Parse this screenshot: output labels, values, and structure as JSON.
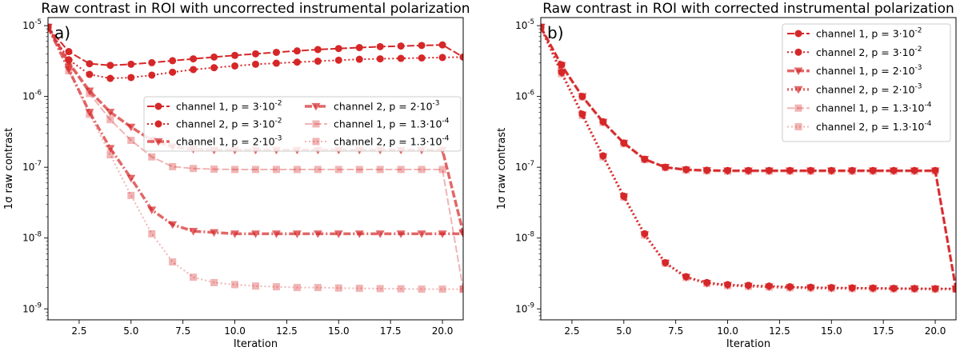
{
  "chart_data": [
    {
      "type": "line",
      "panel_label": "a)",
      "title": "Raw contrast in ROI with uncorrected instrumental polarization",
      "xlabel": "Iteration",
      "ylabel": "1σ raw contrast",
      "xlim": [
        1,
        21
      ],
      "ylim": [
        7e-10,
        1.3e-05
      ],
      "yscale": "log",
      "xticks": [
        2.5,
        5.0,
        7.5,
        10.0,
        12.5,
        15.0,
        17.5,
        20.0
      ],
      "xtick_labels": [
        "2.5",
        "5.0",
        "7.5",
        "10.0",
        "12.5",
        "15.0",
        "17.5",
        "20.0"
      ],
      "yticks": [
        1e-09,
        1e-08,
        1e-07,
        1e-06,
        1e-05
      ],
      "ytick_labels": [
        "10^-9",
        "10^-8",
        "10^-7",
        "10^-6",
        "10^-5"
      ],
      "legend_position": "center-right",
      "legend_columns": 2,
      "x": [
        1,
        2,
        3,
        4,
        5,
        6,
        7,
        8,
        9,
        10,
        11,
        12,
        13,
        14,
        15,
        16,
        17,
        18,
        19,
        20,
        21
      ],
      "series": [
        {
          "name": "channel 1, p = 3·10^-2",
          "color": "#d62728",
          "alpha": 1.0,
          "style": "dashed",
          "marker": "circle",
          "width": 2,
          "values": [
            9.5e-06,
            4.3e-06,
            2.9e-06,
            2.75e-06,
            2.85e-06,
            3e-06,
            3.2e-06,
            3.4e-06,
            3.6e-06,
            3.8e-06,
            4e-06,
            4.2e-06,
            4.4e-06,
            4.6e-06,
            4.75e-06,
            4.9e-06,
            5.05e-06,
            5.15e-06,
            5.25e-06,
            5.35e-06,
            3.6e-06
          ]
        },
        {
          "name": "channel 2, p = 3·10^-2",
          "color": "#d62728",
          "alpha": 1.0,
          "style": "dotted",
          "marker": "circle",
          "width": 2,
          "values": [
            9.5e-06,
            3.3e-06,
            2.05e-06,
            1.8e-06,
            1.85e-06,
            2e-06,
            2.2e-06,
            2.4e-06,
            2.55e-06,
            2.7e-06,
            2.85e-06,
            2.95e-06,
            3.05e-06,
            3.15e-06,
            3.25e-06,
            3.35e-06,
            3.4e-06,
            3.45e-06,
            3.5e-06,
            3.55e-06,
            3.6e-06
          ]
        },
        {
          "name": "channel 1, p = 2·10^-3",
          "color": "#d62728",
          "alpha": 0.7,
          "style": "dashed",
          "marker": "triangle",
          "width": 3.5,
          "values": [
            9.5e-06,
            3e-06,
            1.2e-06,
            6e-07,
            3.7e-07,
            2.4e-07,
            1.95e-07,
            1.8e-07,
            1.75e-07,
            1.75e-07,
            1.75e-07,
            1.75e-07,
            1.75e-07,
            1.75e-07,
            1.75e-07,
            1.75e-07,
            1.75e-07,
            1.75e-07,
            1.75e-07,
            1.75e-07,
            1.2e-08
          ]
        },
        {
          "name": "channel 2, p = 2·10^-3",
          "color": "#d62728",
          "alpha": 0.7,
          "style": "dashdot",
          "marker": "triangle",
          "width": 3.5,
          "values": [
            9.5e-06,
            2.4e-06,
            6e-07,
            1.85e-07,
            7e-08,
            2.5e-08,
            1.55e-08,
            1.25e-08,
            1.2e-08,
            1.15e-08,
            1.15e-08,
            1.15e-08,
            1.15e-08,
            1.15e-08,
            1.15e-08,
            1.15e-08,
            1.15e-08,
            1.15e-08,
            1.15e-08,
            1.15e-08,
            1.15e-08
          ]
        },
        {
          "name": "channel 1, p = 1.3·10^-4",
          "color": "#d62728",
          "alpha": 0.35,
          "style": "dashed",
          "marker": "square",
          "width": 2,
          "values": [
            9.5e-06,
            2.9e-06,
            1.1e-06,
            4.7e-07,
            2.4e-07,
            1.4e-07,
            1.02e-07,
            9.6e-08,
            9.4e-08,
            9.3e-08,
            9.3e-08,
            9.3e-08,
            9.3e-08,
            9.3e-08,
            9.3e-08,
            9.3e-08,
            9.3e-08,
            9.3e-08,
            9.3e-08,
            9.3e-08,
            1.9e-09
          ]
        },
        {
          "name": "channel 2, p = 1.3·10^-4",
          "color": "#d62728",
          "alpha": 0.35,
          "style": "dotted",
          "marker": "square",
          "width": 2,
          "values": [
            9.5e-06,
            2.3e-06,
            5.6e-07,
            1.5e-07,
            4e-08,
            1.15e-08,
            4.6e-09,
            2.8e-09,
            2.35e-09,
            2.2e-09,
            2.1e-09,
            2.05e-09,
            2e-09,
            2e-09,
            1.97e-09,
            1.95e-09,
            1.93e-09,
            1.92e-09,
            1.9e-09,
            1.9e-09,
            1.9e-09
          ]
        }
      ]
    },
    {
      "type": "line",
      "panel_label": "b)",
      "title": "Raw contrast in ROI with corrected instrumental polarization",
      "xlabel": "Iteration",
      "ylabel": "1σ raw contrast",
      "xlim": [
        1,
        21
      ],
      "ylim": [
        7e-10,
        1.3e-05
      ],
      "yscale": "log",
      "xticks": [
        2.5,
        5.0,
        7.5,
        10.0,
        12.5,
        15.0,
        17.5,
        20.0
      ],
      "xtick_labels": [
        "2.5",
        "5.0",
        "7.5",
        "10.0",
        "12.5",
        "15.0",
        "17.5",
        "20.0"
      ],
      "yticks": [
        1e-09,
        1e-08,
        1e-07,
        1e-06,
        1e-05
      ],
      "ytick_labels": [
        "10^-9",
        "10^-8",
        "10^-7",
        "10^-6",
        "10^-5"
      ],
      "legend_position": "top-right",
      "legend_columns": 1,
      "x": [
        1,
        2,
        3,
        4,
        5,
        6,
        7,
        8,
        9,
        10,
        11,
        12,
        13,
        14,
        15,
        16,
        17,
        18,
        19,
        20,
        21
      ],
      "series": [
        {
          "name": "channel 1, p = 3·10^-2",
          "color": "#d62728",
          "alpha": 1.0,
          "style": "dashed",
          "marker": "circle",
          "width": 2,
          "values": [
            9.5e-06,
            2.8e-06,
            1e-06,
            4.4e-07,
            2.2e-07,
            1.3e-07,
            1e-07,
            9.3e-08,
            9.1e-08,
            9e-08,
            9e-08,
            9e-08,
            9e-08,
            9e-08,
            9e-08,
            9e-08,
            9e-08,
            9e-08,
            9e-08,
            9e-08,
            1.9e-09
          ]
        },
        {
          "name": "channel 2, p = 3·10^-2",
          "color": "#d62728",
          "alpha": 1.0,
          "style": "dotted",
          "marker": "circle",
          "width": 2,
          "values": [
            9.5e-06,
            2.2e-06,
            5.6e-07,
            1.45e-07,
            3.9e-08,
            1.15e-08,
            4.5e-09,
            2.85e-09,
            2.35e-09,
            2.2e-09,
            2.15e-09,
            2.1e-09,
            2.05e-09,
            2.02e-09,
            2e-09,
            1.98e-09,
            1.97e-09,
            1.95e-09,
            1.94e-09,
            1.93e-09,
            1.93e-09
          ]
        },
        {
          "name": "channel 1, p = 2·10^-3",
          "color": "#d62728",
          "alpha": 0.7,
          "style": "dashed",
          "marker": "triangle",
          "width": 3.5,
          "values": [
            9.5e-06,
            2.75e-06,
            1e-06,
            4.35e-07,
            2.2e-07,
            1.3e-07,
            1e-07,
            9.2e-08,
            9e-08,
            8.9e-08,
            8.9e-08,
            8.9e-08,
            8.9e-08,
            8.9e-08,
            8.9e-08,
            8.9e-08,
            8.9e-08,
            8.9e-08,
            8.9e-08,
            8.9e-08,
            1.9e-09
          ]
        },
        {
          "name": "channel 2, p = 2·10^-3",
          "color": "#d62728",
          "alpha": 0.7,
          "style": "dotted",
          "marker": "triangle",
          "width": 3.5,
          "values": [
            9.5e-06,
            2.15e-06,
            5.5e-07,
            1.42e-07,
            3.85e-08,
            1.12e-08,
            4.45e-09,
            2.8e-09,
            2.3e-09,
            2.15e-09,
            2.1e-09,
            2.05e-09,
            2e-09,
            1.98e-09,
            1.96e-09,
            1.95e-09,
            1.94e-09,
            1.93e-09,
            1.92e-09,
            1.91e-09,
            1.91e-09
          ]
        },
        {
          "name": "channel 1, p = 1.3·10^-4",
          "color": "#d62728",
          "alpha": 0.35,
          "style": "dashed",
          "marker": "square",
          "width": 2,
          "values": [
            9.5e-06,
            2.7e-06,
            9.8e-07,
            4.3e-07,
            2.15e-07,
            1.28e-07,
            9.9e-08,
            9.1e-08,
            8.9e-08,
            8.8e-08,
            8.8e-08,
            8.8e-08,
            8.8e-08,
            8.8e-08,
            8.8e-08,
            8.8e-08,
            8.8e-08,
            8.8e-08,
            8.8e-08,
            8.8e-08,
            1.9e-09
          ]
        },
        {
          "name": "channel 2, p = 1.3·10^-4",
          "color": "#d62728",
          "alpha": 0.35,
          "style": "dotted",
          "marker": "square",
          "width": 2,
          "values": [
            9.5e-06,
            2.1e-06,
            5.4e-07,
            1.4e-07,
            3.8e-08,
            1.1e-08,
            4.4e-09,
            2.78e-09,
            2.28e-09,
            2.13e-09,
            2.08e-09,
            2.03e-09,
            1.99e-09,
            1.97e-09,
            1.95e-09,
            1.94e-09,
            1.93e-09,
            1.92e-09,
            1.91e-09,
            1.9e-09,
            1.9e-09
          ]
        }
      ]
    }
  ]
}
